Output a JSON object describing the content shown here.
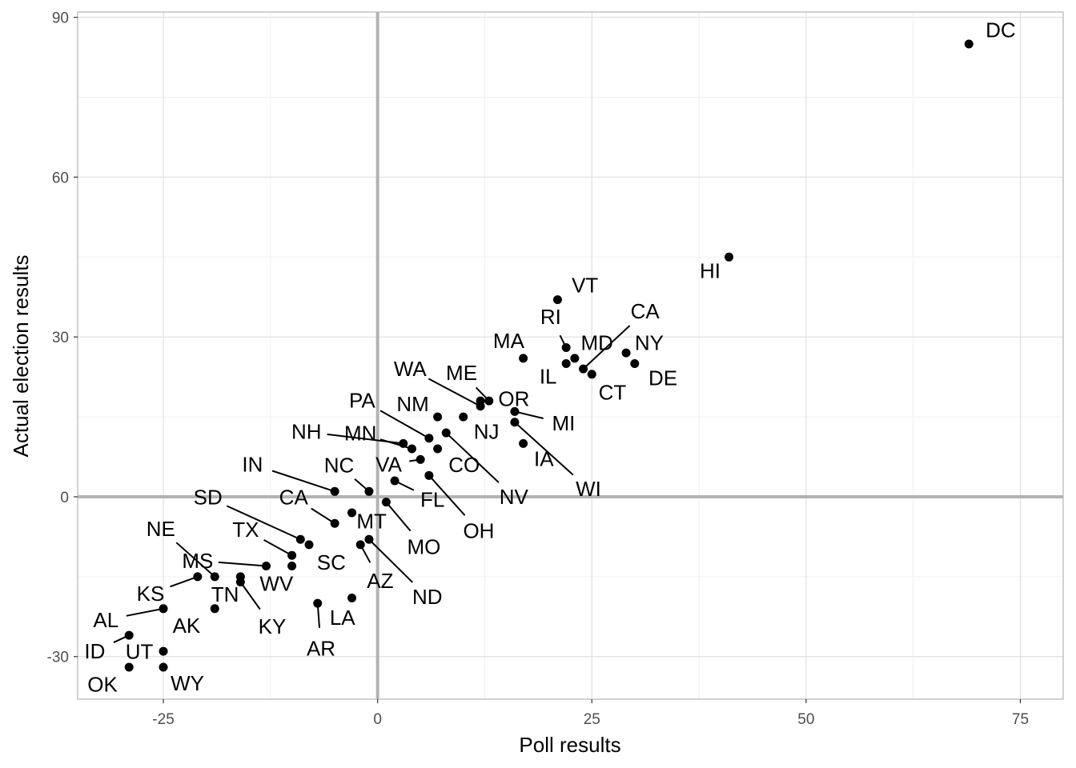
{
  "chart_data": {
    "type": "scatter",
    "xlabel": "Poll results",
    "ylabel": "Actual election results",
    "xlim": [
      -35,
      80
    ],
    "ylim": [
      -38,
      91
    ],
    "x_ticks": [
      -25,
      0,
      25,
      50,
      75
    ],
    "y_ticks": [
      -30,
      0,
      30,
      60,
      90
    ],
    "x_tick_labels": [
      "-25",
      "0",
      "25",
      "50",
      "75"
    ],
    "y_tick_labels": [
      "-30",
      "0",
      "30",
      "60",
      "90"
    ],
    "grid": true,
    "reference_lines": {
      "x": 0,
      "y": 0,
      "color": "#b3b3b3"
    },
    "colors": {
      "point": "#000000",
      "grid_major": "#e0e0e0",
      "grid_minor": "#f0f0f0",
      "border": "#b3b3b3"
    },
    "points": [
      {
        "state": "DC",
        "x": 69,
        "y": 85,
        "lx": 72.7,
        "ly": 87.6
      },
      {
        "state": "HI",
        "x": 41,
        "y": 45,
        "lx": 38.8,
        "ly": 42.4
      },
      {
        "state": "VT",
        "x": 21,
        "y": 37,
        "lx": 24.2,
        "ly": 39.7
      },
      {
        "state": "CA",
        "x": 24,
        "y": 24,
        "lx": 31.2,
        "ly": 34.8,
        "leader": true
      },
      {
        "state": "RI",
        "x": 22,
        "y": 28,
        "lx": 20.2,
        "ly": 33.8,
        "leader": true
      },
      {
        "state": "MD",
        "x": 23,
        "y": 26,
        "lx": 25.6,
        "ly": 28.9
      },
      {
        "state": "NY",
        "x": 29,
        "y": 27,
        "lx": 31.7,
        "ly": 28.9
      },
      {
        "state": "MA",
        "x": 17,
        "y": 26,
        "lx": 15.3,
        "ly": 29.3
      },
      {
        "state": "IL",
        "x": 22,
        "y": 25,
        "lx": 19.9,
        "ly": 22.6
      },
      {
        "state": "DE",
        "x": 30,
        "y": 25,
        "lx": 33.3,
        "ly": 22.3
      },
      {
        "state": "CT",
        "x": 25,
        "y": 23,
        "lx": 27.4,
        "ly": 19.6
      },
      {
        "state": "WA",
        "x": 12,
        "y": 17,
        "lx": 3.8,
        "ly": 24.0,
        "leader": true
      },
      {
        "state": "ME",
        "x": 13,
        "y": 18,
        "lx": 9.8,
        "ly": 23.3,
        "leader": true
      },
      {
        "state": "OR",
        "x": 12,
        "y": 18,
        "lx": 15.9,
        "ly": 18.4
      },
      {
        "state": "MI",
        "x": 16,
        "y": 16,
        "lx": 21.7,
        "ly": 13.8,
        "leader": true
      },
      {
        "state": "PA",
        "x": 6,
        "y": 11,
        "lx": -1.8,
        "ly": 18.1,
        "leader": true
      },
      {
        "state": "NM",
        "x": 7,
        "y": 15,
        "lx": 4.1,
        "ly": 17.4
      },
      {
        "state": "NJ",
        "x": 10,
        "y": 15,
        "lx": 12.7,
        "ly": 12.2
      },
      {
        "state": "NH",
        "x": 3,
        "y": 10,
        "lx": -8.3,
        "ly": 12.2,
        "leader": true
      },
      {
        "state": "MN",
        "x": 4,
        "y": 9,
        "lx": -2.0,
        "ly": 11.9,
        "leader": true
      },
      {
        "state": "CO",
        "x": 7,
        "y": 9,
        "lx": 10.1,
        "ly": 6.0
      },
      {
        "state": "IA",
        "x": 17,
        "y": 10,
        "lx": 19.4,
        "ly": 7.1
      },
      {
        "state": "WI",
        "x": 16,
        "y": 14,
        "lx": 24.6,
        "ly": 1.5,
        "leader": true
      },
      {
        "state": "NV",
        "x": 8,
        "y": 12,
        "lx": 15.9,
        "ly": 0.0,
        "leader": true
      },
      {
        "state": "IN",
        "x": -5,
        "y": 1,
        "lx": -14.6,
        "ly": 6.1,
        "leader": true
      },
      {
        "state": "NC",
        "x": -1,
        "y": 1,
        "lx": -4.5,
        "ly": 5.9,
        "leader": true
      },
      {
        "state": "VA",
        "x": 5,
        "y": 7,
        "lx": 1.3,
        "ly": 6.1,
        "leader": true
      },
      {
        "state": "FL",
        "x": 2,
        "y": 3,
        "lx": 6.4,
        "ly": -0.5,
        "leader": true
      },
      {
        "state": "OH",
        "x": 6,
        "y": 4,
        "lx": 11.8,
        "ly": -6.4,
        "leader": true
      },
      {
        "state": "MO",
        "x": 1,
        "y": -1,
        "lx": 5.4,
        "ly": -9.4,
        "leader": true
      },
      {
        "state": "SD",
        "x": -9,
        "y": -8,
        "lx": -19.8,
        "ly": -0.1,
        "leader": true
      },
      {
        "state": "CA",
        "x": -5,
        "y": -5,
        "lx": -9.8,
        "ly": -0.1,
        "leader": true
      },
      {
        "state": "MT",
        "x": -3,
        "y": -3,
        "lx": -0.7,
        "ly": -4.6
      },
      {
        "state": "TX",
        "x": -10,
        "y": -11,
        "lx": -15.4,
        "ly": -6.2,
        "leader": true
      },
      {
        "state": "SC",
        "x": -8,
        "y": -9,
        "lx": -5.4,
        "ly": -12.3
      },
      {
        "state": "AZ",
        "x": -2,
        "y": -9,
        "lx": 0.3,
        "ly": -15.8,
        "leader": true
      },
      {
        "state": "ND",
        "x": -1,
        "y": -8,
        "lx": 5.8,
        "ly": -18.8,
        "leader": true
      },
      {
        "state": "NE",
        "x": -19,
        "y": -15,
        "lx": -25.3,
        "ly": -6.0,
        "leader": true
      },
      {
        "state": "MS",
        "x": -13,
        "y": -13,
        "lx": -21.0,
        "ly": -12.0,
        "leader": true
      },
      {
        "state": "WV",
        "x": -10,
        "y": -13,
        "lx": -11.8,
        "ly": -16.3
      },
      {
        "state": "KS",
        "x": -21,
        "y": -15,
        "lx": -26.5,
        "ly": -18.2,
        "leader": true
      },
      {
        "state": "TN",
        "x": -16,
        "y": -15,
        "lx": -17.8,
        "ly": -18.3
      },
      {
        "state": "KY",
        "x": -16,
        "y": -16,
        "lx": -12.3,
        "ly": -24.3,
        "leader": true
      },
      {
        "state": "AK",
        "x": -19,
        "y": -21,
        "lx": -22.3,
        "ly": -24.2
      },
      {
        "state": "LA",
        "x": -3,
        "y": -19,
        "lx": -4.1,
        "ly": -22.7
      },
      {
        "state": "AR",
        "x": -7,
        "y": -20,
        "lx": -6.6,
        "ly": -28.5,
        "leader": true
      },
      {
        "state": "AL",
        "x": -25,
        "y": -21,
        "lx": -31.7,
        "ly": -23.1,
        "leader": true
      },
      {
        "state": "ID",
        "x": -29,
        "y": -26,
        "lx": -33.0,
        "ly": -29.0,
        "leader": true
      },
      {
        "state": "UT",
        "x": -25,
        "y": -29,
        "lx": -27.8,
        "ly": -29.1
      },
      {
        "state": "OK",
        "x": -29,
        "y": -32,
        "lx": -32.1,
        "ly": -35.2
      },
      {
        "state": "WY",
        "x": -25,
        "y": -32,
        "lx": -22.2,
        "ly": -35.0
      }
    ]
  }
}
